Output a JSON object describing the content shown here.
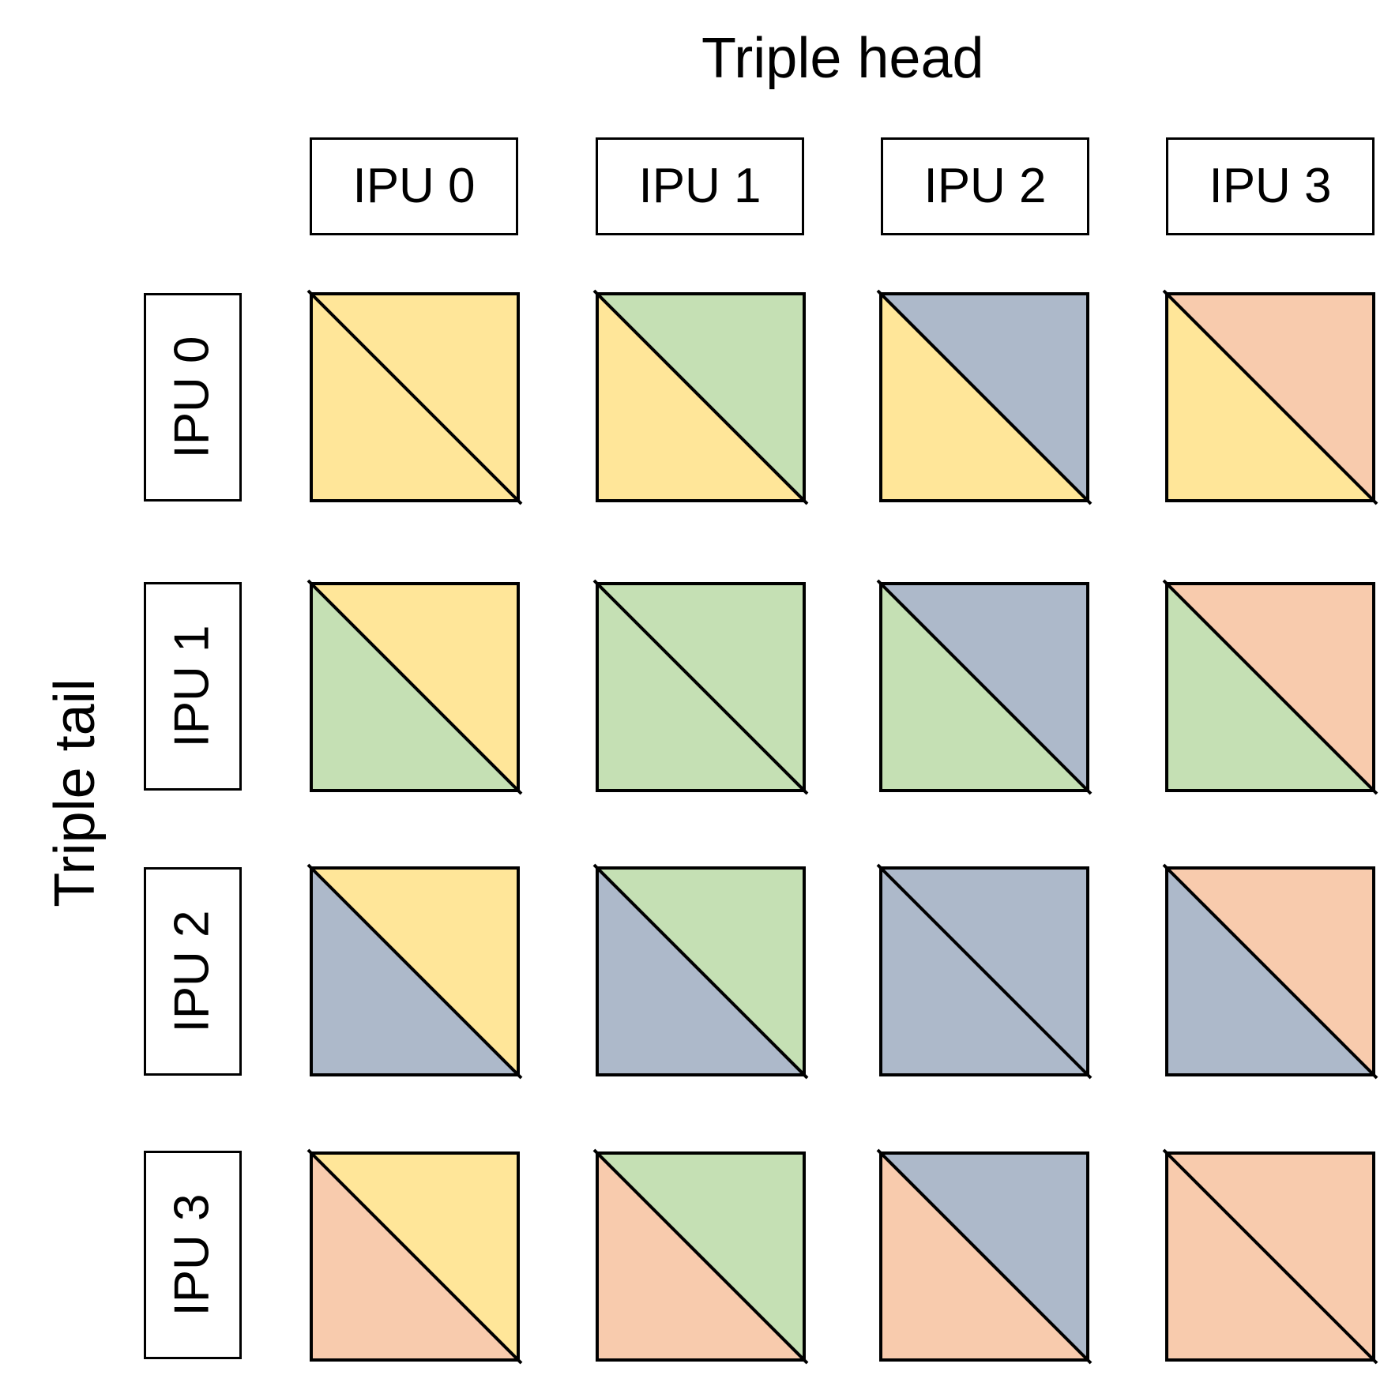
{
  "diagram": {
    "column_axis_title": "Triple head",
    "row_axis_title": "Triple tail",
    "ipus": [
      {
        "label": "IPU 0",
        "color": "#FFE699"
      },
      {
        "label": "IPU 1",
        "color": "#C5E0B4"
      },
      {
        "label": "IPU 2",
        "color": "#ADB9CA"
      },
      {
        "label": "IPU 3",
        "color": "#F8CBAD"
      }
    ],
    "cell_fill": {
      "upper_right_triangle": "column IPU color",
      "lower_left_triangle": "row IPU color"
    },
    "border_color": "#000000"
  }
}
